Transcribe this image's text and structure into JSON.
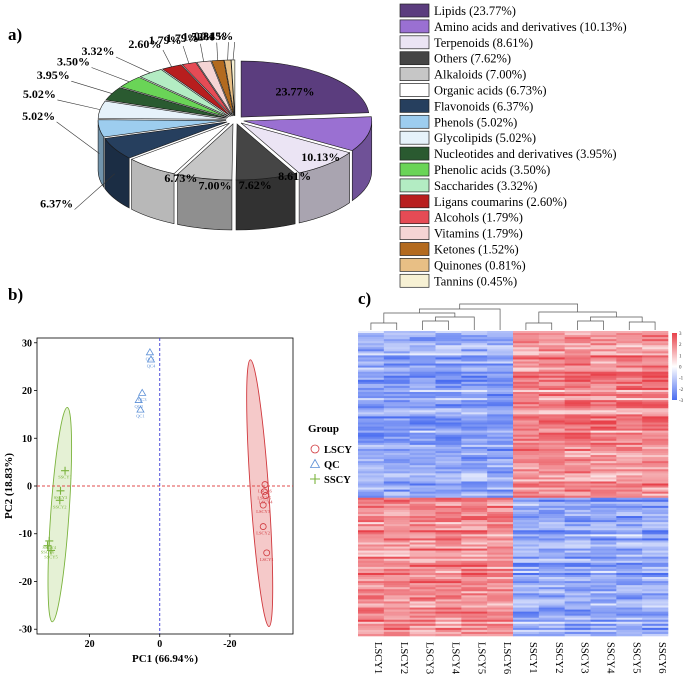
{
  "panel_labels": {
    "a": "a)",
    "b": "b)",
    "c": "c)"
  },
  "chart_data": [
    {
      "type": "pie",
      "panel": "a)",
      "style": "3d-exploded",
      "slices": [
        {
          "label": "Lipids (23.77%)",
          "name": "Lipids",
          "value": 23.77,
          "pct_label": "23.77%",
          "color": "#5b3d7e"
        },
        {
          "label": "Amino acids and derivatives (10.13%)",
          "name": "Amino acids and derivatives",
          "value": 10.13,
          "pct_label": "10.13%",
          "color": "#9a70d2"
        },
        {
          "label": "Terpenoids (8.61%)",
          "name": "Terpenoids",
          "value": 8.61,
          "pct_label": "8.61%",
          "color": "#ebe4f4"
        },
        {
          "label": "Others (7.62%)",
          "name": "Others",
          "value": 7.62,
          "pct_label": "7.62%",
          "color": "#454545"
        },
        {
          "label": "Alkaloids (7.00%)",
          "name": "Alkaloids",
          "value": 7.0,
          "pct_label": "7.00%",
          "color": "#c6c6c6"
        },
        {
          "label": "Organic acids (6.73%)",
          "name": "Organic acids",
          "value": 6.73,
          "pct_label": "6.73%",
          "color": "#ffffff"
        },
        {
          "label": "Flavonoids (6.37%)",
          "name": "Flavonoids",
          "value": 6.37,
          "pct_label": "6.37%",
          "color": "#263f5e"
        },
        {
          "label": "Phenols (5.02%)",
          "name": "Phenols",
          "value": 5.02,
          "pct_label": "5.02%",
          "color": "#9dcdef"
        },
        {
          "label": "Glycolipids (5.02%)",
          "name": "Glycolipids",
          "value": 5.02,
          "pct_label": "5.02%",
          "color": "#e6f2fa"
        },
        {
          "label": "Nucleotides and derivatives (3.95%)",
          "name": "Nucleotides and derivatives",
          "value": 3.95,
          "pct_label": "3.95%",
          "color": "#2a5a30"
        },
        {
          "label": "Phenolic acids (3.50%)",
          "name": "Phenolic acids",
          "value": 3.5,
          "pct_label": "3.50%",
          "color": "#6ad457"
        },
        {
          "label": "Saccharides (3.32%)",
          "name": "Saccharides",
          "value": 3.32,
          "pct_label": "3.32%",
          "color": "#b3ecc3"
        },
        {
          "label": "Ligans coumarins (2.60%)",
          "name": "Ligans coumarins",
          "value": 2.6,
          "pct_label": "2.60%",
          "color": "#b81e1e"
        },
        {
          "label": "Alcohols (1.79%)",
          "name": "Alcohols",
          "value": 1.79,
          "pct_label": "1.79%",
          "color": "#e54b55"
        },
        {
          "label": "Vitamins (1.79%)",
          "name": "Vitamins",
          "value": 1.79,
          "pct_label": "1.79%",
          "color": "#f5d4d4"
        },
        {
          "label": "Ketones (1.52%)",
          "name": "Ketones",
          "value": 1.52,
          "pct_label": "1.52%",
          "color": "#b36a1f"
        },
        {
          "label": "Quinones (0.81%)",
          "name": "Quinones",
          "value": 0.81,
          "pct_label": "0.81%",
          "color": "#e8bf85"
        },
        {
          "label": "Tannins (0.45%)",
          "name": "Tannins",
          "value": 0.45,
          "pct_label": "0.45%",
          "color": "#f7f1d4"
        }
      ]
    },
    {
      "type": "scatter",
      "panel": "b)",
      "xlabel": "PC1 (66.94%)",
      "ylabel": "PC2 (18.83%)",
      "xlim": [
        35,
        -38
      ],
      "ylim": [
        -31,
        31
      ],
      "xticks": [
        20,
        0,
        -20
      ],
      "yticks": [
        -30,
        -20,
        -10,
        0,
        10,
        20,
        30
      ],
      "zero_lines": {
        "horizontal": 0,
        "vertical": 0
      },
      "legend_title": "Group",
      "series": [
        {
          "name": "LSCY",
          "marker": "circle",
          "color": "#d0383d",
          "ellipse": {
            "cx": -28.5,
            "cy": -1.5,
            "rx": 2.6,
            "ry": 28,
            "angle": -4,
            "fill": "#f2b7b7"
          },
          "points": [
            {
              "label": "LSCY1",
              "x": -30.5,
              "y": -14
            },
            {
              "label": "LSCY2",
              "x": -29.5,
              "y": -8.5
            },
            {
              "label": "LSCY3",
              "x": -29.5,
              "y": -4
            },
            {
              "label": "LSCY4",
              "x": -30.2,
              "y": -2
            },
            {
              "label": "LSCY5",
              "x": -29.8,
              "y": -1.2
            },
            {
              "label": "LSCY6",
              "x": -30,
              "y": 0.3
            }
          ]
        },
        {
          "name": "QC",
          "marker": "triangle",
          "color": "#5b8fd6",
          "points": [
            {
              "label": "QC1",
              "x": 5.5,
              "y": 16
            },
            {
              "label": "QC2",
              "x": 6,
              "y": 18
            },
            {
              "label": "QC3",
              "x": 5,
              "y": 19.5
            },
            {
              "label": "QC4",
              "x": 2.5,
              "y": 26.5
            },
            {
              "label": "QC5",
              "x": 2.8,
              "y": 28
            }
          ]
        },
        {
          "name": "SSCY",
          "marker": "plus",
          "color": "#7bb33d",
          "ellipse": {
            "cx": 28.5,
            "cy": -6,
            "rx": 2.6,
            "ry": 22.5,
            "angle": 4,
            "fill": "#dcecc7"
          },
          "points": [
            {
              "label": "SSCY1",
              "x": 27,
              "y": 3.2
            },
            {
              "label": "SSCY2",
              "x": 28.5,
              "y": -3
            },
            {
              "label": "SSCY3",
              "x": 28.3,
              "y": -1
            },
            {
              "label": "SSCY4",
              "x": 31.5,
              "y": -11.5
            },
            {
              "label": "SSCY5",
              "x": 31,
              "y": -13.5
            },
            {
              "label": "SSCY6",
              "x": 32,
              "y": -12.5
            }
          ]
        }
      ]
    },
    {
      "type": "heatmap",
      "panel": "c)",
      "columns": [
        "LSCY1",
        "LSCY2",
        "LSCY3",
        "LSCY4",
        "LSCY5",
        "LSCY6",
        "SSCY1",
        "SSCY2",
        "SSCY3",
        "SSCY4",
        "SSCY5",
        "SSCY6"
      ],
      "colorbar_ticks": [
        3,
        2,
        1,
        0,
        -1,
        -2,
        -3
      ],
      "color_low": "#4a6df0",
      "color_mid": "#ffffff",
      "color_high": "#e8414a",
      "pattern": "upper block of metabolites higher in SSCY samples; lower block higher in LSCY samples"
    }
  ]
}
